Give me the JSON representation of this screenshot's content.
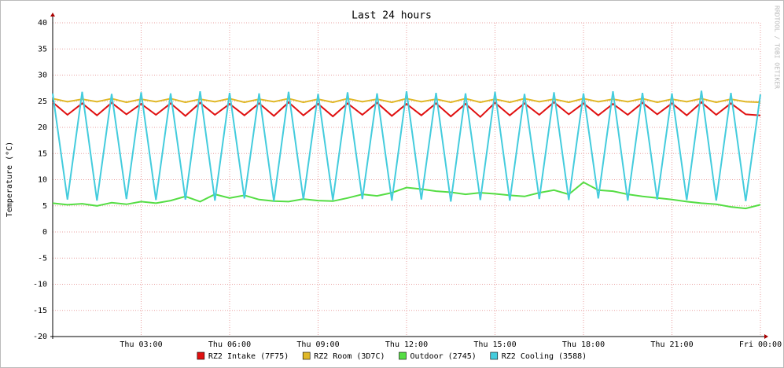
{
  "chart_data": {
    "type": "line",
    "title": "Last 24 hours",
    "y_label": "Temperature (°C)",
    "side_text": "RRDTOOL / TOBI OETIKER",
    "x": [
      0,
      0.5,
      1,
      1.5,
      2,
      2.5,
      3,
      3.5,
      4,
      4.5,
      5,
      5.5,
      6,
      6.5,
      7,
      7.5,
      8,
      8.5,
      9,
      9.5,
      10,
      10.5,
      11,
      11.5,
      12,
      12.5,
      13,
      13.5,
      14,
      14.5,
      15,
      15.5,
      16,
      16.5,
      17,
      17.5,
      18,
      18.5,
      19,
      19.5,
      20,
      20.5,
      21,
      21.5,
      22,
      22.5,
      23,
      23.5,
      24
    ],
    "xlim": [
      0,
      24
    ],
    "xticks": [
      {
        "value": 3,
        "label": "Thu 03:00"
      },
      {
        "value": 6,
        "label": "Thu 06:00"
      },
      {
        "value": 9,
        "label": "Thu 09:00"
      },
      {
        "value": 12,
        "label": "Thu 12:00"
      },
      {
        "value": 15,
        "label": "Thu 15:00"
      },
      {
        "value": 18,
        "label": "Thu 18:00"
      },
      {
        "value": 21,
        "label": "Thu 21:00"
      },
      {
        "value": 24,
        "label": "Fri 00:00"
      }
    ],
    "ylim": [
      -20,
      40
    ],
    "yticks": [
      -20,
      -15,
      -10,
      -5,
      0,
      5,
      10,
      15,
      20,
      25,
      30,
      35,
      40
    ],
    "grid": true,
    "legend": "bottom",
    "series": [
      {
        "name": "RZ2 Intake (7F75)",
        "color": "#e01010",
        "values": [
          24.8,
          22.4,
          24.6,
          22.3,
          24.7,
          22.5,
          24.5,
          22.4,
          24.6,
          22.2,
          24.7,
          22.4,
          24.5,
          22.3,
          24.6,
          22.2,
          24.8,
          22.3,
          24.5,
          22.1,
          24.6,
          22.4,
          24.7,
          22.2,
          24.5,
          22.3,
          24.6,
          22.1,
          24.5,
          22.0,
          24.7,
          22.3,
          24.6,
          22.4,
          24.8,
          22.5,
          24.6,
          22.3,
          24.5,
          22.4,
          24.7,
          22.5,
          24.6,
          22.3,
          24.8,
          22.4,
          24.6,
          22.5,
          22.3
        ]
      },
      {
        "name": "RZ2 Room (3D7C)",
        "color": "#e0b828",
        "values": [
          25.5,
          24.9,
          25.4,
          24.9,
          25.5,
          24.8,
          25.4,
          24.9,
          25.5,
          24.8,
          25.4,
          24.9,
          25.5,
          24.8,
          25.4,
          24.9,
          25.5,
          24.8,
          25.4,
          24.8,
          25.5,
          24.9,
          25.4,
          24.8,
          25.5,
          24.9,
          25.4,
          24.8,
          25.5,
          24.8,
          25.4,
          24.8,
          25.5,
          24.9,
          25.4,
          24.8,
          25.5,
          24.9,
          25.4,
          24.9,
          25.5,
          24.8,
          25.4,
          24.9,
          25.5,
          24.8,
          25.4,
          24.9,
          24.8
        ]
      },
      {
        "name": "Outdoor (2745)",
        "color": "#55dd44",
        "values": [
          5.5,
          5.2,
          5.4,
          5.0,
          5.6,
          5.3,
          5.8,
          5.5,
          6.0,
          6.8,
          5.8,
          7.2,
          6.5,
          7.0,
          6.2,
          5.9,
          5.8,
          6.3,
          6.0,
          5.9,
          6.5,
          7.2,
          6.9,
          7.5,
          8.5,
          8.2,
          7.8,
          7.6,
          7.2,
          7.5,
          7.3,
          7.0,
          6.8,
          7.5,
          8.0,
          7.2,
          9.5,
          8.0,
          7.8,
          7.2,
          6.8,
          6.5,
          6.2,
          5.8,
          5.5,
          5.3,
          4.8,
          4.5,
          5.2
        ]
      },
      {
        "name": "RZ2 Cooling (3588)",
        "color": "#44ccdd",
        "values": [
          26.5,
          6.2,
          26.8,
          6.0,
          26.4,
          6.3,
          26.7,
          6.1,
          26.5,
          6.2,
          26.9,
          6.0,
          26.6,
          6.4,
          26.5,
          5.9,
          26.8,
          6.2,
          26.4,
          6.1,
          26.7,
          6.3,
          26.5,
          6.0,
          26.9,
          6.2,
          26.6,
          5.8,
          26.5,
          6.1,
          26.8,
          6.0,
          26.4,
          6.3,
          26.7,
          6.1,
          26.5,
          6.4,
          26.9,
          6.0,
          26.6,
          6.2,
          26.5,
          6.1,
          27.0,
          6.0,
          26.6,
          5.9,
          26.3
        ]
      }
    ]
  }
}
